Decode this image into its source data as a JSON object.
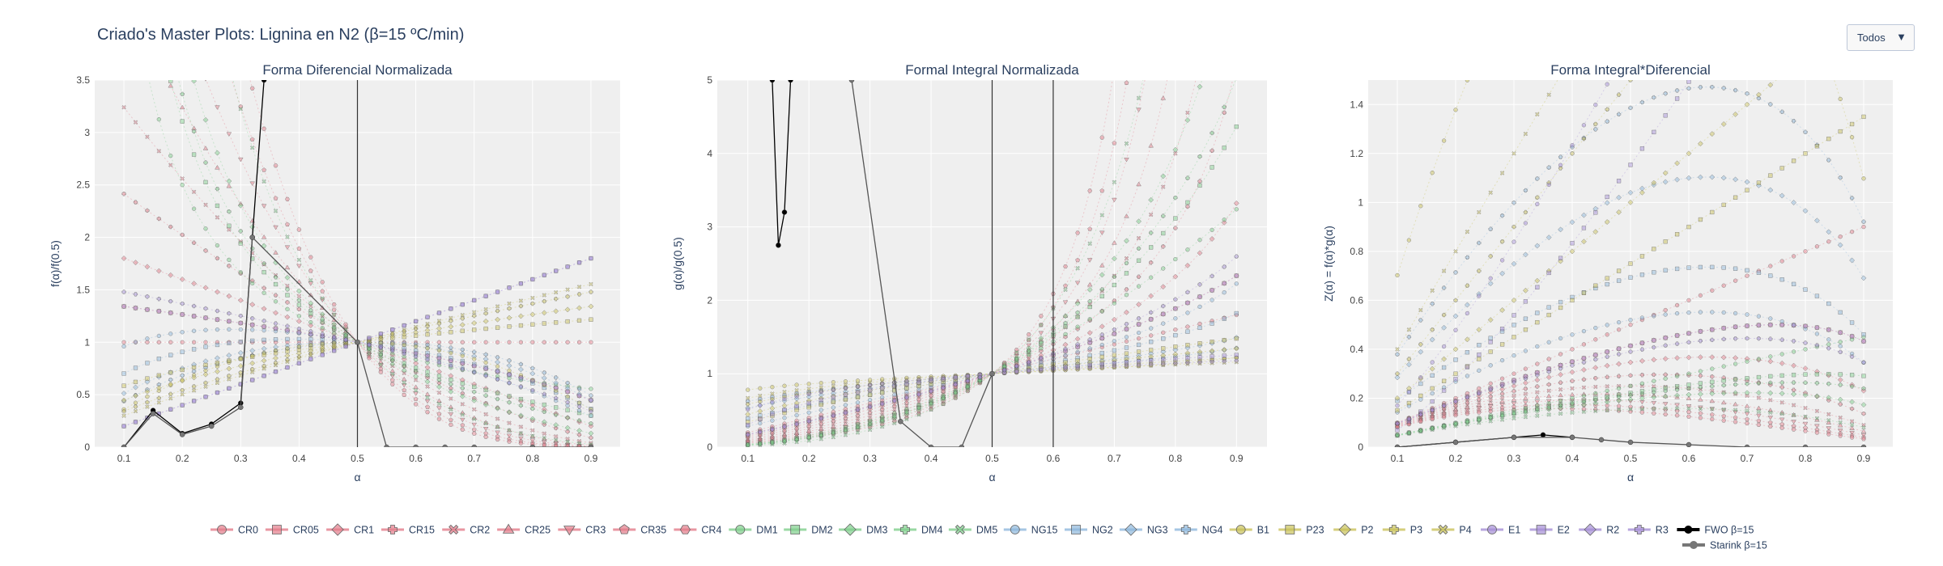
{
  "header": {
    "title": "Criado's Master Plots: Lignina en N2 (β=15 ºC/min)"
  },
  "dropdown": {
    "selected": "Todos"
  },
  "colors": {
    "CR": "#e27c8a",
    "DM": "#7fce8c",
    "NG": "#8fb8dc",
    "P": "#c9c25a",
    "E": "#a58fd6",
    "exp": "#000000",
    "starink": "#777777",
    "plot_bg": "#efefef",
    "grid": "#ffffff"
  },
  "chart_data": [
    {
      "type": "scatter",
      "title": "Forma Diferencial Normalizada",
      "xlabel": "α",
      "ylabel": "f(α)/f(0.5)",
      "xlim": [
        0.05,
        0.95
      ],
      "ylim": [
        0,
        3.5
      ],
      "xticks": [
        "0.1",
        "0.2",
        "0.3",
        "0.4",
        "0.5",
        "0.6",
        "0.7",
        "0.8",
        "0.9"
      ],
      "yticks": [
        "0",
        "0.5",
        "1",
        "1.5",
        "2",
        "2.5",
        "3",
        "3.5"
      ],
      "vlines": [
        0.5
      ],
      "experimental": {
        "FWO β=15": {
          "x": [
            0.1,
            0.15,
            0.2,
            0.25,
            0.3,
            0.32,
            0.34
          ],
          "y": [
            0.0,
            0.35,
            0.13,
            0.22,
            0.42,
            2.0,
            3.5
          ]
        },
        "Starink β=15": {
          "x": [
            0.1,
            0.15,
            0.2,
            0.25,
            0.3,
            0.32,
            0.5,
            0.55,
            0.6,
            0.65,
            0.7,
            0.8,
            0.9
          ],
          "y": [
            0.0,
            0.32,
            0.12,
            0.2,
            0.38,
            2.0,
            1.0,
            0.0,
            0.0,
            0.0,
            0.0,
            0.0,
            0.0
          ]
        }
      }
    },
    {
      "type": "scatter",
      "title": "Formal Integral Normalizada",
      "xlabel": "α",
      "ylabel": "g(α)/g(0.5)",
      "xlim": [
        0.05,
        0.95
      ],
      "ylim": [
        0,
        5
      ],
      "xticks": [
        "0.1",
        "0.2",
        "0.3",
        "0.4",
        "0.5",
        "0.6",
        "0.7",
        "0.8",
        "0.9"
      ],
      "yticks": [
        "0",
        "1",
        "2",
        "3",
        "4",
        "5"
      ],
      "vlines": [
        0.5,
        0.6
      ],
      "experimental": {
        "FWO β=15": {
          "x": [
            0.14,
            0.15,
            0.16,
            0.17
          ],
          "y": [
            5.0,
            2.75,
            3.2,
            5.0
          ]
        },
        "Starink β=15": {
          "x": [
            0.27,
            0.35,
            0.4,
            0.45,
            0.5
          ],
          "y": [
            5.0,
            0.35,
            0.0,
            0.0,
            1.0
          ]
        }
      }
    },
    {
      "type": "scatter",
      "title": "Forma Integral*Diferencial",
      "xlabel": "α",
      "ylabel": "Z(α) = f(α)*g(α)",
      "xlim": [
        0.05,
        0.95
      ],
      "ylim": [
        0,
        1.5
      ],
      "xticks": [
        "0.1",
        "0.2",
        "0.3",
        "0.4",
        "0.5",
        "0.6",
        "0.7",
        "0.8",
        "0.9"
      ],
      "yticks": [
        "0",
        "0.2",
        "0.4",
        "0.6",
        "0.8",
        "1",
        "1.2",
        "1.4"
      ],
      "vlines": [],
      "experimental": {
        "FWO β=15": {
          "x": [
            0.1,
            0.2,
            0.3,
            0.35,
            0.4
          ],
          "y": [
            0.0,
            0.02,
            0.04,
            0.05,
            0.04
          ]
        },
        "Starink β=15": {
          "x": [
            0.1,
            0.2,
            0.3,
            0.4,
            0.45,
            0.5,
            0.6,
            0.7,
            0.8,
            0.9
          ],
          "y": [
            0.0,
            0.02,
            0.04,
            0.04,
            0.03,
            0.02,
            0.01,
            0.0,
            0.0,
            0.0
          ]
        }
      }
    }
  ],
  "legend": {
    "placement": "bottom",
    "items": [
      {
        "name": "CR0",
        "group": "CR",
        "symbol": "circle"
      },
      {
        "name": "CR05",
        "group": "CR",
        "symbol": "square"
      },
      {
        "name": "CR1",
        "group": "CR",
        "symbol": "diamond"
      },
      {
        "name": "CR15",
        "group": "CR",
        "symbol": "cross"
      },
      {
        "name": "CR2",
        "group": "CR",
        "symbol": "x"
      },
      {
        "name": "CR25",
        "group": "CR",
        "symbol": "triangle-up"
      },
      {
        "name": "CR3",
        "group": "CR",
        "symbol": "triangle-down"
      },
      {
        "name": "CR35",
        "group": "CR",
        "symbol": "pentagon"
      },
      {
        "name": "CR4",
        "group": "CR",
        "symbol": "hexagon"
      },
      {
        "name": "DM1",
        "group": "DM",
        "symbol": "circle"
      },
      {
        "name": "DM2",
        "group": "DM",
        "symbol": "square"
      },
      {
        "name": "DM3",
        "group": "DM",
        "symbol": "diamond"
      },
      {
        "name": "DM4",
        "group": "DM",
        "symbol": "cross"
      },
      {
        "name": "DM5",
        "group": "DM",
        "symbol": "x"
      },
      {
        "name": "NG15",
        "group": "NG",
        "symbol": "circle"
      },
      {
        "name": "NG2",
        "group": "NG",
        "symbol": "square"
      },
      {
        "name": "NG3",
        "group": "NG",
        "symbol": "diamond"
      },
      {
        "name": "NG4",
        "group": "NG",
        "symbol": "cross"
      },
      {
        "name": "B1",
        "group": "P",
        "symbol": "circle"
      },
      {
        "name": "P23",
        "group": "P",
        "symbol": "square"
      },
      {
        "name": "P2",
        "group": "P",
        "symbol": "diamond"
      },
      {
        "name": "P3",
        "group": "P",
        "symbol": "cross"
      },
      {
        "name": "P4",
        "group": "P",
        "symbol": "x"
      },
      {
        "name": "E1",
        "group": "E",
        "symbol": "circle"
      },
      {
        "name": "E2",
        "group": "E",
        "symbol": "square"
      },
      {
        "name": "R2",
        "group": "E",
        "symbol": "diamond"
      },
      {
        "name": "R3",
        "group": "E",
        "symbol": "cross"
      },
      {
        "name": "FWO β=15",
        "group": "exp",
        "symbol": "circle"
      },
      {
        "name": "Starink β=15",
        "group": "starink",
        "symbol": "circle"
      }
    ]
  }
}
